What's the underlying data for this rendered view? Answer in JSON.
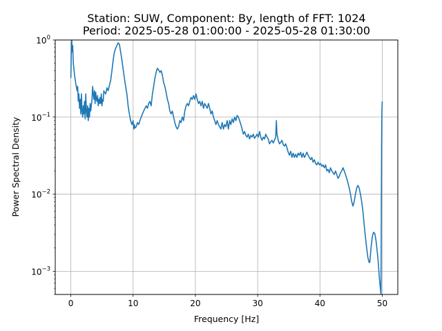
{
  "chart_data": {
    "type": "line",
    "title_line1": "Station: SUW, Component: By, length of FFT: 1024",
    "title_line2": "Period: 2025-05-28 01:00:00 - 2025-05-28 01:30:00",
    "xlabel": "Frequency [Hz]",
    "ylabel": "Power Spectral Density",
    "xlim": [
      -2.5,
      52.5
    ],
    "ylim": [
      0.0005,
      1
    ],
    "yscale": "log",
    "grid": true,
    "x_ticks": [
      0,
      10,
      20,
      30,
      40,
      50
    ],
    "x_tick_labels": [
      "0",
      "10",
      "20",
      "30",
      "40",
      "50"
    ],
    "y_ticks": [
      0.001,
      0.01,
      0.1,
      1
    ],
    "y_tick_labels": [
      {
        "base": "10",
        "exp": "−3"
      },
      {
        "base": "10",
        "exp": "−2"
      },
      {
        "base": "10",
        "exp": "−1"
      },
      {
        "base": "10",
        "exp": "0"
      }
    ],
    "series": [
      {
        "color": "#1f77b4",
        "points": [
          [
            0.0,
            0.32
          ],
          [
            0.05,
            0.5
          ],
          [
            0.1,
            0.9
          ],
          [
            0.15,
            1.0
          ],
          [
            0.2,
            0.7
          ],
          [
            0.3,
            0.85
          ],
          [
            0.4,
            0.5
          ],
          [
            0.6,
            0.35
          ],
          [
            0.8,
            0.27
          ],
          [
            1.0,
            0.22
          ],
          [
            1.1,
            0.25
          ],
          [
            1.2,
            0.16
          ],
          [
            1.3,
            0.2
          ],
          [
            1.4,
            0.13
          ],
          [
            1.5,
            0.17
          ],
          [
            1.6,
            0.11
          ],
          [
            1.7,
            0.2
          ],
          [
            1.8,
            0.12
          ],
          [
            1.9,
            0.1
          ],
          [
            2.0,
            0.14
          ],
          [
            2.1,
            0.11
          ],
          [
            2.2,
            0.16
          ],
          [
            2.3,
            0.095
          ],
          [
            2.4,
            0.2
          ],
          [
            2.5,
            0.12
          ],
          [
            2.6,
            0.1
          ],
          [
            2.7,
            0.14
          ],
          [
            2.8,
            0.09
          ],
          [
            2.9,
            0.13
          ],
          [
            3.0,
            0.1
          ],
          [
            3.1,
            0.15
          ],
          [
            3.2,
            0.12
          ],
          [
            3.4,
            0.17
          ],
          [
            3.5,
            0.25
          ],
          [
            3.6,
            0.2
          ],
          [
            3.7,
            0.17
          ],
          [
            3.8,
            0.22
          ],
          [
            3.9,
            0.15
          ],
          [
            4.0,
            0.21
          ],
          [
            4.1,
            0.17
          ],
          [
            4.2,
            0.16
          ],
          [
            4.3,
            0.19
          ],
          [
            4.4,
            0.14
          ],
          [
            4.5,
            0.17
          ],
          [
            4.6,
            0.15
          ],
          [
            4.7,
            0.18
          ],
          [
            4.8,
            0.15
          ],
          [
            4.9,
            0.2
          ],
          [
            5.0,
            0.14
          ],
          [
            5.1,
            0.17
          ],
          [
            5.2,
            0.16
          ],
          [
            5.3,
            0.22
          ],
          [
            5.4,
            0.21
          ],
          [
            5.6,
            0.2
          ],
          [
            5.8,
            0.24
          ],
          [
            6.0,
            0.22
          ],
          [
            6.2,
            0.26
          ],
          [
            6.4,
            0.3
          ],
          [
            6.6,
            0.4
          ],
          [
            6.8,
            0.55
          ],
          [
            7.0,
            0.7
          ],
          [
            7.2,
            0.78
          ],
          [
            7.4,
            0.85
          ],
          [
            7.6,
            0.92
          ],
          [
            7.8,
            0.88
          ],
          [
            8.0,
            0.7
          ],
          [
            8.2,
            0.55
          ],
          [
            8.4,
            0.42
          ],
          [
            8.6,
            0.32
          ],
          [
            8.8,
            0.25
          ],
          [
            9.0,
            0.2
          ],
          [
            9.2,
            0.14
          ],
          [
            9.4,
            0.11
          ],
          [
            9.6,
            0.09
          ],
          [
            9.8,
            0.08
          ],
          [
            10.0,
            0.09
          ],
          [
            10.1,
            0.07
          ],
          [
            10.2,
            0.08
          ],
          [
            10.3,
            0.072
          ],
          [
            10.5,
            0.075
          ],
          [
            10.7,
            0.085
          ],
          [
            10.9,
            0.08
          ],
          [
            11.1,
            0.09
          ],
          [
            11.3,
            0.1
          ],
          [
            11.5,
            0.11
          ],
          [
            11.7,
            0.12
          ],
          [
            11.9,
            0.13
          ],
          [
            12.1,
            0.14
          ],
          [
            12.3,
            0.13
          ],
          [
            12.5,
            0.15
          ],
          [
            12.7,
            0.16
          ],
          [
            12.9,
            0.14
          ],
          [
            13.1,
            0.2
          ],
          [
            13.3,
            0.25
          ],
          [
            13.5,
            0.32
          ],
          [
            13.7,
            0.38
          ],
          [
            13.9,
            0.43
          ],
          [
            14.1,
            0.41
          ],
          [
            14.3,
            0.38
          ],
          [
            14.5,
            0.4
          ],
          [
            14.7,
            0.35
          ],
          [
            14.9,
            0.28
          ],
          [
            15.1,
            0.25
          ],
          [
            15.3,
            0.21
          ],
          [
            15.5,
            0.17
          ],
          [
            15.7,
            0.15
          ],
          [
            15.9,
            0.12
          ],
          [
            16.1,
            0.11
          ],
          [
            16.3,
            0.12
          ],
          [
            16.5,
            0.1
          ],
          [
            16.7,
            0.085
          ],
          [
            16.9,
            0.075
          ],
          [
            17.1,
            0.07
          ],
          [
            17.3,
            0.075
          ],
          [
            17.5,
            0.09
          ],
          [
            17.7,
            0.085
          ],
          [
            17.9,
            0.1
          ],
          [
            18.1,
            0.09
          ],
          [
            18.3,
            0.12
          ],
          [
            18.5,
            0.14
          ],
          [
            18.7,
            0.15
          ],
          [
            18.9,
            0.14
          ],
          [
            19.1,
            0.16
          ],
          [
            19.3,
            0.18
          ],
          [
            19.5,
            0.17
          ],
          [
            19.7,
            0.19
          ],
          [
            19.9,
            0.17
          ],
          [
            20.1,
            0.2
          ],
          [
            20.3,
            0.17
          ],
          [
            20.5,
            0.15
          ],
          [
            20.7,
            0.16
          ],
          [
            20.9,
            0.14
          ],
          [
            21.1,
            0.16
          ],
          [
            21.3,
            0.13
          ],
          [
            21.5,
            0.15
          ],
          [
            21.7,
            0.14
          ],
          [
            21.9,
            0.13
          ],
          [
            22.1,
            0.15
          ],
          [
            22.3,
            0.13
          ],
          [
            22.5,
            0.11
          ],
          [
            22.7,
            0.12
          ],
          [
            22.9,
            0.1
          ],
          [
            23.1,
            0.09
          ],
          [
            23.3,
            0.08
          ],
          [
            23.5,
            0.09
          ],
          [
            23.7,
            0.08
          ],
          [
            23.9,
            0.075
          ],
          [
            24.1,
            0.07
          ],
          [
            24.3,
            0.085
          ],
          [
            24.5,
            0.07
          ],
          [
            24.7,
            0.08
          ],
          [
            24.9,
            0.075
          ],
          [
            25.1,
            0.09
          ],
          [
            25.3,
            0.07
          ],
          [
            25.5,
            0.09
          ],
          [
            25.7,
            0.08
          ],
          [
            25.9,
            0.095
          ],
          [
            26.1,
            0.085
          ],
          [
            26.3,
            0.1
          ],
          [
            26.5,
            0.09
          ],
          [
            26.7,
            0.105
          ],
          [
            26.9,
            0.1
          ],
          [
            27.1,
            0.09
          ],
          [
            27.3,
            0.08
          ],
          [
            27.5,
            0.07
          ],
          [
            27.7,
            0.06
          ],
          [
            27.9,
            0.065
          ],
          [
            28.1,
            0.058
          ],
          [
            28.3,
            0.055
          ],
          [
            28.5,
            0.06
          ],
          [
            28.7,
            0.052
          ],
          [
            28.9,
            0.058
          ],
          [
            29.1,
            0.055
          ],
          [
            29.3,
            0.06
          ],
          [
            29.5,
            0.053
          ],
          [
            29.7,
            0.056
          ],
          [
            29.9,
            0.06
          ],
          [
            30.1,
            0.055
          ],
          [
            30.3,
            0.065
          ],
          [
            30.5,
            0.055
          ],
          [
            30.7,
            0.05
          ],
          [
            30.9,
            0.055
          ],
          [
            31.1,
            0.052
          ],
          [
            31.3,
            0.06
          ],
          [
            31.5,
            0.055
          ],
          [
            31.7,
            0.052
          ],
          [
            31.9,
            0.045
          ],
          [
            32.1,
            0.048
          ],
          [
            32.3,
            0.05
          ],
          [
            32.5,
            0.046
          ],
          [
            32.7,
            0.05
          ],
          [
            32.9,
            0.055
          ],
          [
            33.0,
            0.09
          ],
          [
            33.1,
            0.06
          ],
          [
            33.3,
            0.05
          ],
          [
            33.5,
            0.045
          ],
          [
            33.7,
            0.047
          ],
          [
            33.9,
            0.05
          ],
          [
            34.1,
            0.044
          ],
          [
            34.3,
            0.042
          ],
          [
            34.5,
            0.045
          ],
          [
            34.7,
            0.04
          ],
          [
            34.9,
            0.035
          ],
          [
            35.1,
            0.032
          ],
          [
            35.3,
            0.036
          ],
          [
            35.5,
            0.03
          ],
          [
            35.7,
            0.034
          ],
          [
            35.9,
            0.03
          ],
          [
            36.1,
            0.033
          ],
          [
            36.3,
            0.03
          ],
          [
            36.5,
            0.034
          ],
          [
            36.7,
            0.032
          ],
          [
            36.9,
            0.035
          ],
          [
            37.1,
            0.03
          ],
          [
            37.3,
            0.034
          ],
          [
            37.5,
            0.03
          ],
          [
            37.7,
            0.032
          ],
          [
            37.9,
            0.035
          ],
          [
            38.1,
            0.032
          ],
          [
            38.3,
            0.03
          ],
          [
            38.5,
            0.028
          ],
          [
            38.7,
            0.03
          ],
          [
            38.9,
            0.026
          ],
          [
            39.1,
            0.028
          ],
          [
            39.3,
            0.025
          ],
          [
            39.5,
            0.024
          ],
          [
            39.7,
            0.026
          ],
          [
            39.9,
            0.024
          ],
          [
            40.1,
            0.025
          ],
          [
            40.3,
            0.023
          ],
          [
            40.5,
            0.024
          ],
          [
            40.7,
            0.022
          ],
          [
            40.9,
            0.024
          ],
          [
            41.1,
            0.02
          ],
          [
            41.3,
            0.021
          ],
          [
            41.5,
            0.019
          ],
          [
            41.7,
            0.022
          ],
          [
            41.9,
            0.02
          ],
          [
            42.1,
            0.019
          ],
          [
            42.3,
            0.018
          ],
          [
            42.5,
            0.02
          ],
          [
            42.7,
            0.018
          ],
          [
            42.9,
            0.016
          ],
          [
            43.1,
            0.017
          ],
          [
            43.3,
            0.019
          ],
          [
            43.5,
            0.02
          ],
          [
            43.7,
            0.022
          ],
          [
            43.9,
            0.02
          ],
          [
            44.1,
            0.018
          ],
          [
            44.3,
            0.016
          ],
          [
            44.5,
            0.014
          ],
          [
            44.7,
            0.012
          ],
          [
            44.9,
            0.01
          ],
          [
            45.1,
            0.008
          ],
          [
            45.3,
            0.007
          ],
          [
            45.5,
            0.008
          ],
          [
            45.7,
            0.01
          ],
          [
            45.9,
            0.012
          ],
          [
            46.1,
            0.013
          ],
          [
            46.3,
            0.012
          ],
          [
            46.5,
            0.01
          ],
          [
            46.7,
            0.008
          ],
          [
            46.9,
            0.006
          ],
          [
            47.1,
            0.004
          ],
          [
            47.3,
            0.0028
          ],
          [
            47.5,
            0.002
          ],
          [
            47.7,
            0.0015
          ],
          [
            47.9,
            0.0013
          ],
          [
            48.0,
            0.0013
          ],
          [
            48.2,
            0.002
          ],
          [
            48.4,
            0.0028
          ],
          [
            48.6,
            0.0032
          ],
          [
            48.8,
            0.0031
          ],
          [
            49.0,
            0.0025
          ],
          [
            49.2,
            0.0018
          ],
          [
            49.4,
            0.0012
          ],
          [
            49.55,
            0.0008
          ],
          [
            49.7,
            0.0006
          ],
          [
            49.8,
            0.0005
          ],
          [
            49.85,
            0.006
          ],
          [
            49.9,
            0.05
          ],
          [
            49.95,
            0.12
          ],
          [
            50.0,
            0.16
          ]
        ]
      }
    ]
  }
}
